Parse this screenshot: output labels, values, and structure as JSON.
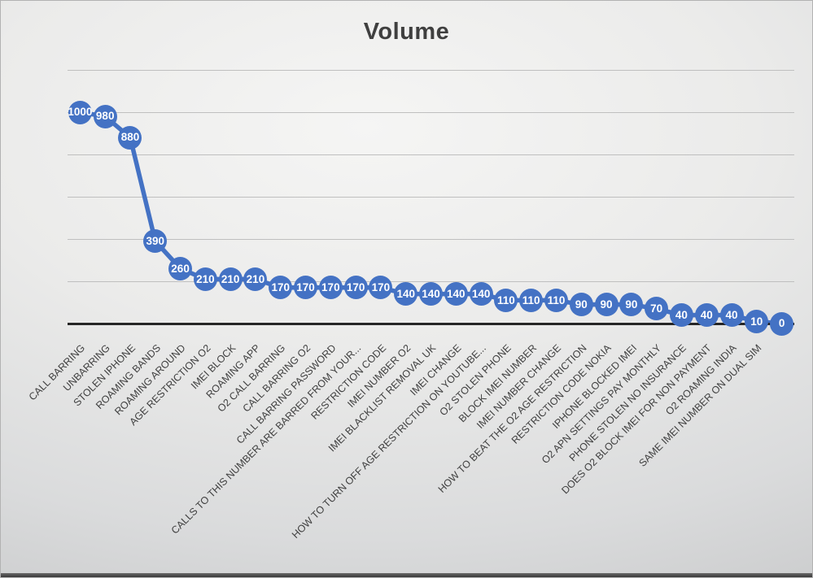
{
  "colors": {
    "accent": "#4472C4",
    "marker_label": "#FFFFFF",
    "axis_label": "#404040",
    "title": "#3F3F3F",
    "gridline": "#BFBFBF",
    "axis_line": "#262626",
    "bottom_edge": "#383838"
  },
  "chart_data": {
    "type": "line",
    "title": "Volume",
    "categories": [
      "CALL BARRING",
      "UNBARRING",
      "STOLEN IPHONE",
      "ROAMING BANDS",
      "ROAMING AROUND",
      "AGE RESTRICTION O2",
      "IMEI BLOCK",
      "ROAMING APP",
      "O2 CALL BARRING",
      "CALL BARRING O2",
      "CALL BARRING PASSWORD",
      "CALLS TO THIS NUMBER ARE BARRED FROM YOUR...",
      "RESTRICTION CODE",
      "IMEI NUMBER O2",
      "IMEI BLACKLIST REMOVAL UK",
      "IMEI CHANGE",
      "HOW TO TURN OFF AGE RESTRICTION ON YOUTUBE...",
      "O2 STOLEN PHONE",
      "BLOCK IMEI NUMBER",
      "IMEI NUMBER CHANGE",
      "HOW TO BEAT THE O2 AGE RESTRICTION",
      "RESTRICTION CODE NOKIA",
      "IPHONE BLOCKED IMEI",
      "O2 APN SETTINGS PAY MONTHLY",
      "PHONE STOLEN NO INSURANCE",
      "DOES O2 BLOCK IMEI FOR NON PAYMENT",
      "O2 ROAMING INDIA",
      "SAME IMEI NUMBER ON DUAL SIM",
      ""
    ],
    "values": [
      1000,
      980,
      880,
      390,
      260,
      210,
      210,
      210,
      170,
      170,
      170,
      170,
      170,
      140,
      140,
      140,
      140,
      110,
      110,
      110,
      90,
      90,
      90,
      70,
      40,
      40,
      40,
      10,
      0
    ],
    "ylim": [
      0,
      1200
    ],
    "ytick_interval": 200,
    "y_axis_labels_visible": false,
    "grid": true,
    "legend": "none",
    "data_labels": "center",
    "marker": "circle",
    "x_tick_label_rotation": 45
  }
}
